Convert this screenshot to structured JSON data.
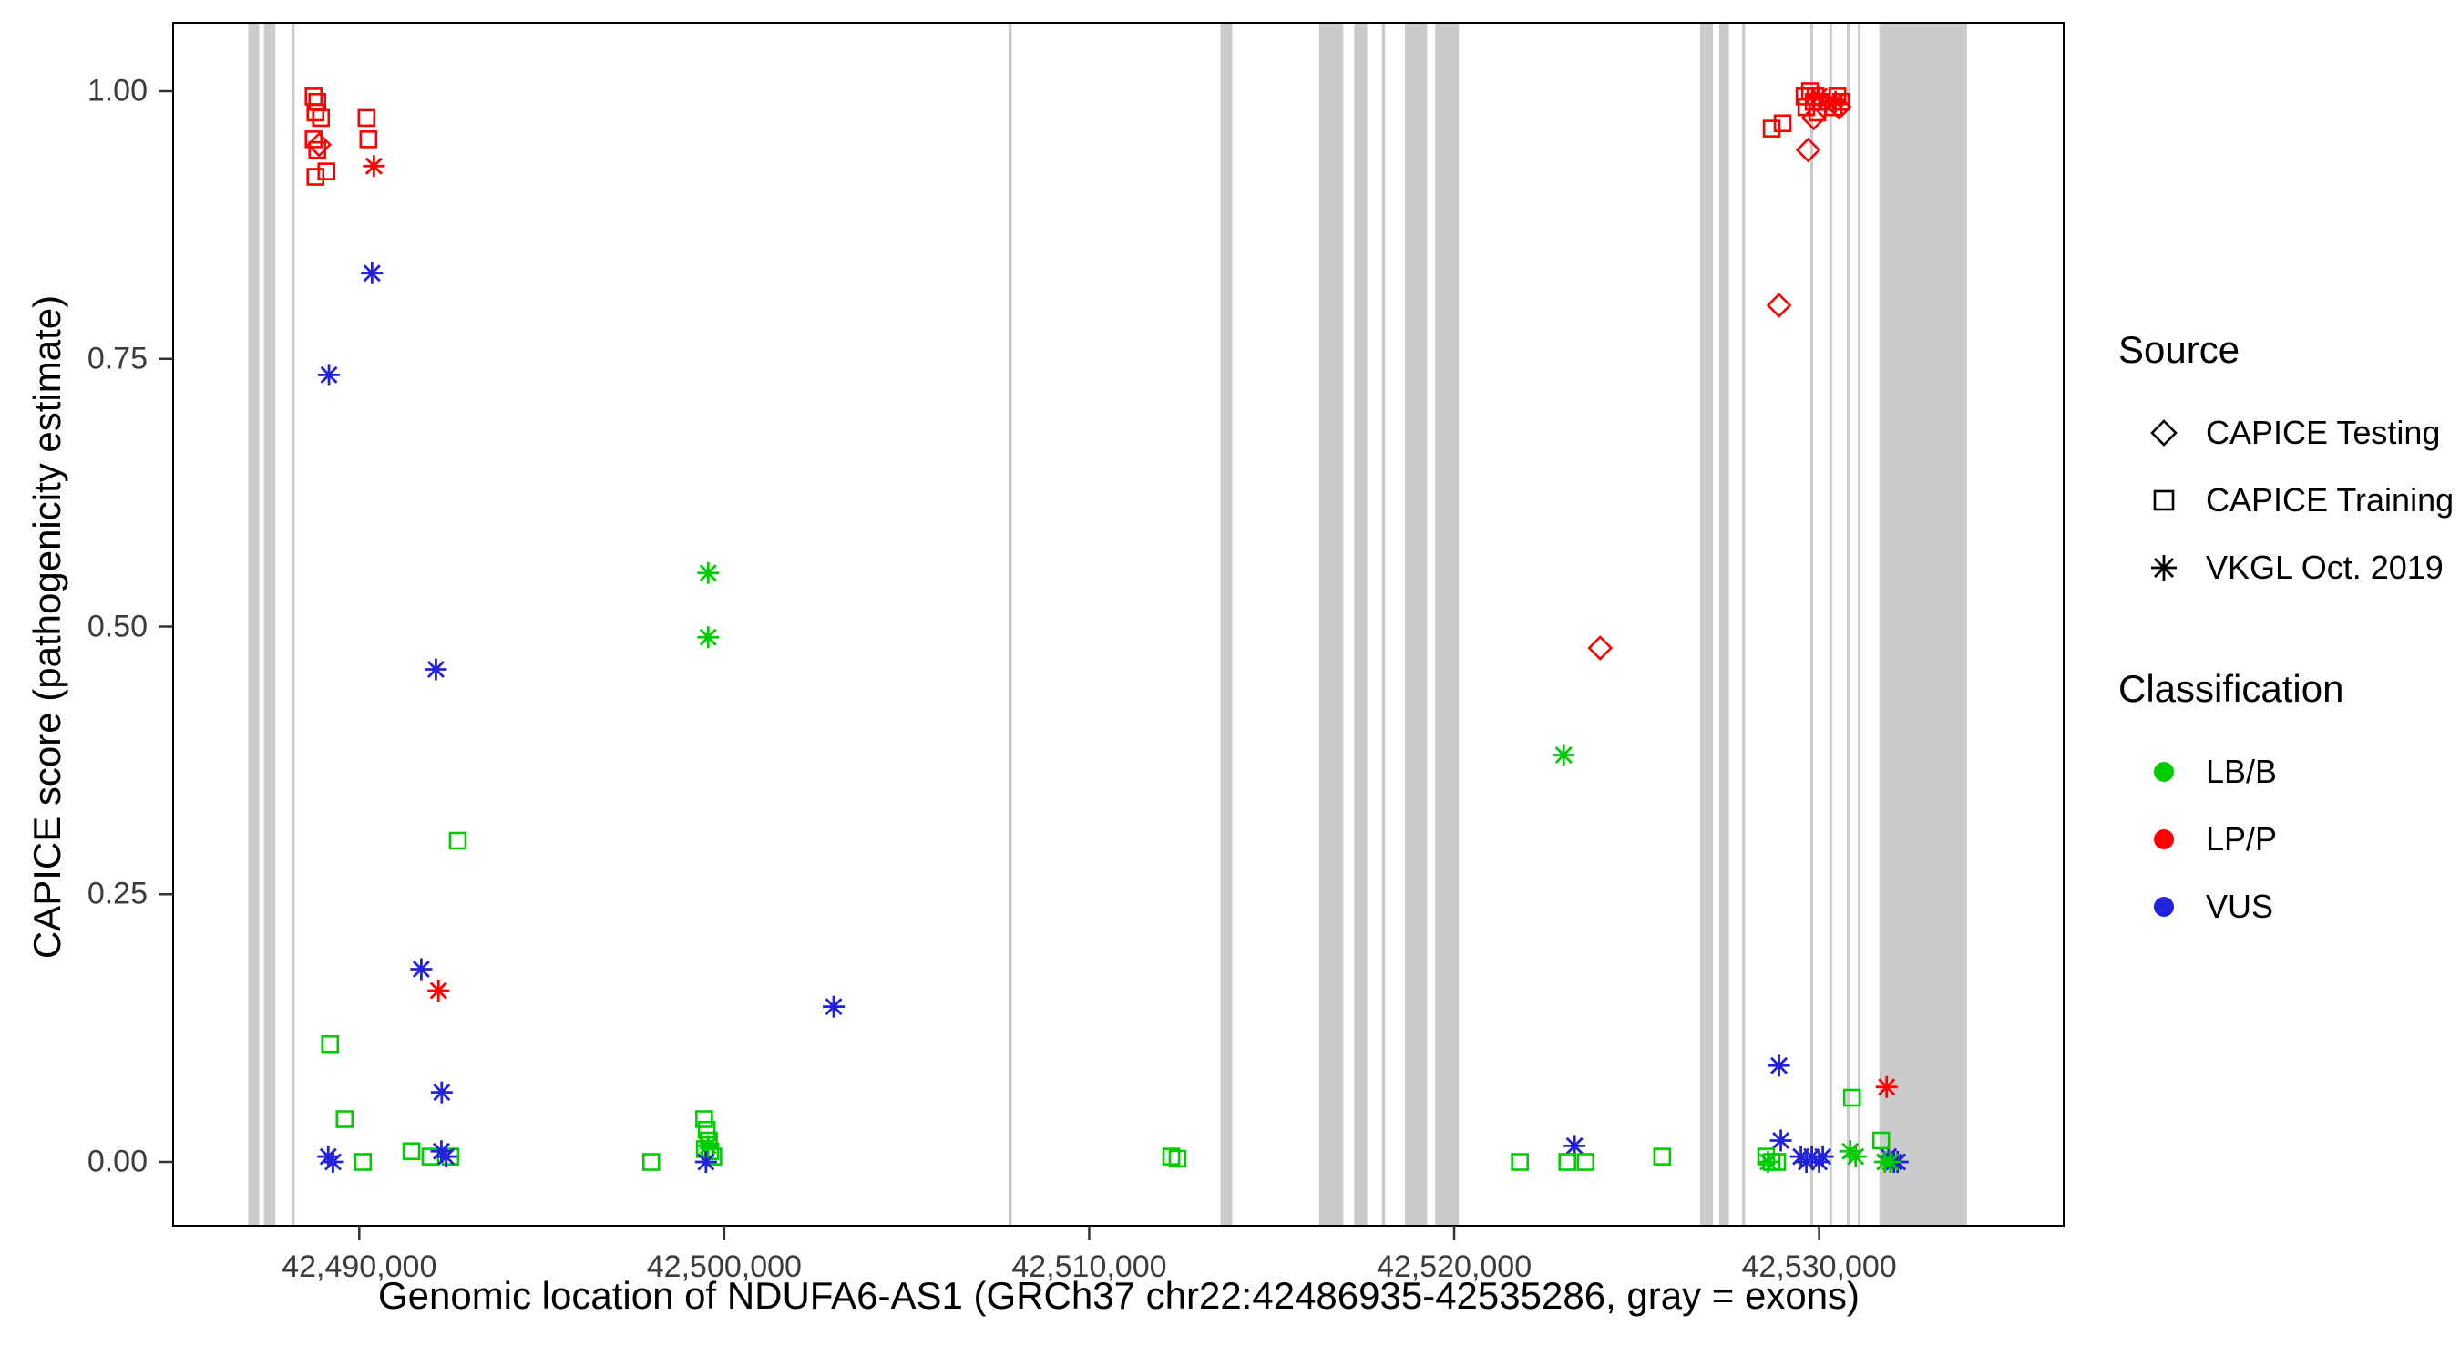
{
  "legend": {
    "source": {
      "title": "Source",
      "items": [
        {
          "label": "CAPICE Testing",
          "marker": "diamond"
        },
        {
          "label": "CAPICE Training",
          "marker": "square"
        },
        {
          "label": "VKGL Oct. 2019",
          "marker": "asterisk"
        }
      ]
    },
    "classification": {
      "title": "Classification",
      "items": [
        {
          "label": "LB/B",
          "color": "#00CC00"
        },
        {
          "label": "LP/P",
          "color": "#FF0000"
        },
        {
          "label": "VUS",
          "color": "#2222DD"
        }
      ]
    }
  },
  "chart_data": {
    "type": "scatter",
    "title": "",
    "xlabel": "Genomic location of NDUFA6-AS1 (GRCh37 chr22:42486935-42535286, gray = exons)",
    "ylabel": "CAPICE score (pathogenicity estimate)",
    "xlim": [
      42484900,
      42536700
    ],
    "ylim": [
      0,
      1
    ],
    "x_tick_values": [
      42490000,
      42500000,
      42510000,
      42520000,
      42530000
    ],
    "x_tick_labels": [
      "42,490,000",
      "42,500,000",
      "42,510,000",
      "42,520,000",
      "42,530,000"
    ],
    "y_tick_values": [
      0,
      0.25,
      0.5,
      0.75,
      1
    ],
    "y_tick_labels": [
      "0.00",
      "0.25",
      "0.50",
      "0.75",
      "1.00"
    ],
    "colors": {
      "LB/B": "#00CC00",
      "LP/P": "#FF0000",
      "VUS": "#2222DD",
      "exon": "#CBCBCB"
    },
    "marker_by_src": {
      "test": "diamond",
      "train": "square",
      "vkgl": "asterisk"
    },
    "legend_position": "right",
    "grid": false,
    "exons": [
      [
        42486960,
        42487260
      ],
      [
        42487390,
        42487700
      ],
      [
        42488150,
        42488230
      ],
      [
        42507790,
        42507880
      ],
      [
        42513600,
        42513920
      ],
      [
        42516300,
        42516960
      ],
      [
        42517260,
        42517620
      ],
      [
        42518020,
        42518110
      ],
      [
        42518650,
        42519260
      ],
      [
        42519480,
        42520130
      ],
      [
        42526740,
        42527090
      ],
      [
        42527260,
        42527530
      ],
      [
        42527890,
        42527970
      ],
      [
        42529760,
        42529830
      ],
      [
        42530280,
        42530350
      ],
      [
        42530760,
        42530830
      ],
      [
        42531060,
        42531130
      ],
      [
        42531650,
        42534050
      ]
    ],
    "points": [
      {
        "x": 42488750,
        "y": 0.995,
        "src": "train",
        "cls": "LP/P"
      },
      {
        "x": 42488850,
        "y": 0.99,
        "src": "train",
        "cls": "LP/P"
      },
      {
        "x": 42488800,
        "y": 0.98,
        "src": "train",
        "cls": "LP/P"
      },
      {
        "x": 42488950,
        "y": 0.975,
        "src": "train",
        "cls": "LP/P"
      },
      {
        "x": 42488750,
        "y": 0.955,
        "src": "train",
        "cls": "LP/P"
      },
      {
        "x": 42488850,
        "y": 0.945,
        "src": "train",
        "cls": "LP/P"
      },
      {
        "x": 42488900,
        "y": 0.95,
        "src": "test",
        "cls": "LP/P"
      },
      {
        "x": 42488800,
        "y": 0.92,
        "src": "train",
        "cls": "LP/P"
      },
      {
        "x": 42489100,
        "y": 0.925,
        "src": "train",
        "cls": "LP/P"
      },
      {
        "x": 42490200,
        "y": 0.975,
        "src": "train",
        "cls": "LP/P"
      },
      {
        "x": 42490250,
        "y": 0.955,
        "src": "train",
        "cls": "LP/P"
      },
      {
        "x": 42490400,
        "y": 0.93,
        "src": "vkgl",
        "cls": "LP/P"
      },
      {
        "x": 42490350,
        "y": 0.83,
        "src": "vkgl",
        "cls": "VUS"
      },
      {
        "x": 42489170,
        "y": 0.735,
        "src": "vkgl",
        "cls": "VUS"
      },
      {
        "x": 42492100,
        "y": 0.46,
        "src": "vkgl",
        "cls": "VUS"
      },
      {
        "x": 42491700,
        "y": 0.18,
        "src": "vkgl",
        "cls": "VUS"
      },
      {
        "x": 42492170,
        "y": 0.16,
        "src": "vkgl",
        "cls": "LP/P"
      },
      {
        "x": 42492260,
        "y": 0.065,
        "src": "vkgl",
        "cls": "VUS"
      },
      {
        "x": 42492700,
        "y": 0.3,
        "src": "train",
        "cls": "LB/B"
      },
      {
        "x": 42489200,
        "y": 0.11,
        "src": "train",
        "cls": "LB/B"
      },
      {
        "x": 42489600,
        "y": 0.04,
        "src": "train",
        "cls": "LB/B"
      },
      {
        "x": 42490100,
        "y": 0,
        "src": "train",
        "cls": "LB/B"
      },
      {
        "x": 42491430,
        "y": 0.01,
        "src": "train",
        "cls": "LB/B"
      },
      {
        "x": 42491950,
        "y": 0.005,
        "src": "train",
        "cls": "LB/B"
      },
      {
        "x": 42492500,
        "y": 0.005,
        "src": "train",
        "cls": "LB/B"
      },
      {
        "x": 42489150,
        "y": 0.005,
        "src": "vkgl",
        "cls": "VUS"
      },
      {
        "x": 42489280,
        "y": 0,
        "src": "vkgl",
        "cls": "VUS"
      },
      {
        "x": 42492250,
        "y": 0.01,
        "src": "vkgl",
        "cls": "VUS"
      },
      {
        "x": 42492380,
        "y": 0.005,
        "src": "vkgl",
        "cls": "VUS"
      },
      {
        "x": 42499560,
        "y": 0.55,
        "src": "vkgl",
        "cls": "LB/B"
      },
      {
        "x": 42499560,
        "y": 0.49,
        "src": "vkgl",
        "cls": "LB/B"
      },
      {
        "x": 42498000,
        "y": 0,
        "src": "train",
        "cls": "LB/B"
      },
      {
        "x": 42499450,
        "y": 0.04,
        "src": "train",
        "cls": "LB/B"
      },
      {
        "x": 42499520,
        "y": 0.03,
        "src": "train",
        "cls": "LB/B"
      },
      {
        "x": 42499580,
        "y": 0.02,
        "src": "train",
        "cls": "LB/B"
      },
      {
        "x": 42499470,
        "y": 0.012,
        "src": "train",
        "cls": "LB/B"
      },
      {
        "x": 42499620,
        "y": 0.01,
        "src": "train",
        "cls": "LB/B"
      },
      {
        "x": 42499700,
        "y": 0.005,
        "src": "train",
        "cls": "LB/B"
      },
      {
        "x": 42499560,
        "y": 0.015,
        "src": "vkgl",
        "cls": "LB/B"
      },
      {
        "x": 42499500,
        "y": 0,
        "src": "vkgl",
        "cls": "VUS"
      },
      {
        "x": 42503000,
        "y": 0.145,
        "src": "vkgl",
        "cls": "VUS"
      },
      {
        "x": 42512250,
        "y": 0.005,
        "src": "train",
        "cls": "LB/B"
      },
      {
        "x": 42512420,
        "y": 0.003,
        "src": "train",
        "cls": "LB/B"
      },
      {
        "x": 42521800,
        "y": 0,
        "src": "train",
        "cls": "LB/B"
      },
      {
        "x": 42523000,
        "y": 0.38,
        "src": "vkgl",
        "cls": "LB/B"
      },
      {
        "x": 42523300,
        "y": 0.015,
        "src": "vkgl",
        "cls": "VUS"
      },
      {
        "x": 42523100,
        "y": 0,
        "src": "train",
        "cls": "LB/B"
      },
      {
        "x": 42523600,
        "y": 0,
        "src": "train",
        "cls": "LB/B"
      },
      {
        "x": 42524000,
        "y": 0.48,
        "src": "test",
        "cls": "LP/P"
      },
      {
        "x": 42525700,
        "y": 0.005,
        "src": "train",
        "cls": "LB/B"
      },
      {
        "x": 42528700,
        "y": 0.965,
        "src": "train",
        "cls": "LP/P"
      },
      {
        "x": 42529000,
        "y": 0.97,
        "src": "train",
        "cls": "LP/P"
      },
      {
        "x": 42529600,
        "y": 0.995,
        "src": "train",
        "cls": "LP/P"
      },
      {
        "x": 42529650,
        "y": 0.985,
        "src": "train",
        "cls": "LP/P"
      },
      {
        "x": 42529750,
        "y": 1,
        "src": "train",
        "cls": "LP/P"
      },
      {
        "x": 42529850,
        "y": 0.99,
        "src": "train",
        "cls": "LP/P"
      },
      {
        "x": 42529900,
        "y": 0.995,
        "src": "train",
        "cls": "LP/P"
      },
      {
        "x": 42529950,
        "y": 0.98,
        "src": "train",
        "cls": "LP/P"
      },
      {
        "x": 42530050,
        "y": 0.99,
        "src": "train",
        "cls": "LP/P"
      },
      {
        "x": 42530400,
        "y": 0.985,
        "src": "train",
        "cls": "LP/P"
      },
      {
        "x": 42530500,
        "y": 0.995,
        "src": "train",
        "cls": "LP/P"
      },
      {
        "x": 42530600,
        "y": 0.99,
        "src": "train",
        "cls": "LP/P"
      },
      {
        "x": 42529850,
        "y": 0.975,
        "src": "test",
        "cls": "LP/P"
      },
      {
        "x": 42529700,
        "y": 0.945,
        "src": "test",
        "cls": "LP/P"
      },
      {
        "x": 42528900,
        "y": 0.8,
        "src": "test",
        "cls": "LP/P"
      },
      {
        "x": 42530550,
        "y": 0.985,
        "src": "test",
        "cls": "LP/P"
      },
      {
        "x": 42530000,
        "y": 0.995,
        "src": "vkgl",
        "cls": "LP/P"
      },
      {
        "x": 42530450,
        "y": 0.99,
        "src": "vkgl",
        "cls": "LP/P"
      },
      {
        "x": 42528900,
        "y": 0.09,
        "src": "vkgl",
        "cls": "VUS"
      },
      {
        "x": 42528950,
        "y": 0.02,
        "src": "vkgl",
        "cls": "VUS"
      },
      {
        "x": 42529500,
        "y": 0.005,
        "src": "vkgl",
        "cls": "VUS"
      },
      {
        "x": 42529650,
        "y": 0,
        "src": "vkgl",
        "cls": "VUS"
      },
      {
        "x": 42529800,
        "y": 0.005,
        "src": "vkgl",
        "cls": "VUS"
      },
      {
        "x": 42530000,
        "y": 0,
        "src": "vkgl",
        "cls": "VUS"
      },
      {
        "x": 42530100,
        "y": 0.005,
        "src": "vkgl",
        "cls": "VUS"
      },
      {
        "x": 42531900,
        "y": 0.005,
        "src": "vkgl",
        "cls": "VUS"
      },
      {
        "x": 42532050,
        "y": 0,
        "src": "vkgl",
        "cls": "VUS"
      },
      {
        "x": 42532150,
        "y": 0,
        "src": "vkgl",
        "cls": "VUS"
      },
      {
        "x": 42528550,
        "y": 0.005,
        "src": "train",
        "cls": "LB/B"
      },
      {
        "x": 42528700,
        "y": 0,
        "src": "train",
        "cls": "LB/B"
      },
      {
        "x": 42528850,
        "y": 0,
        "src": "train",
        "cls": "LB/B"
      },
      {
        "x": 42530900,
        "y": 0.06,
        "src": "train",
        "cls": "LB/B"
      },
      {
        "x": 42531700,
        "y": 0.02,
        "src": "train",
        "cls": "LB/B"
      },
      {
        "x": 42528600,
        "y": 0,
        "src": "vkgl",
        "cls": "LB/B"
      },
      {
        "x": 42530850,
        "y": 0.01,
        "src": "vkgl",
        "cls": "LB/B"
      },
      {
        "x": 42531000,
        "y": 0.005,
        "src": "vkgl",
        "cls": "LB/B"
      },
      {
        "x": 42531800,
        "y": 0,
        "src": "vkgl",
        "cls": "LB/B"
      },
      {
        "x": 42531950,
        "y": 0,
        "src": "vkgl",
        "cls": "LB/B"
      },
      {
        "x": 42531850,
        "y": 0.07,
        "src": "vkgl",
        "cls": "LP/P"
      }
    ]
  }
}
